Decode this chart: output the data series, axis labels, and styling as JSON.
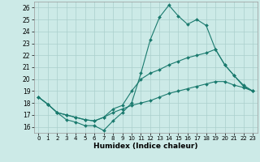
{
  "xlabel": "Humidex (Indice chaleur)",
  "background_color": "#cceae7",
  "grid_color": "#aacfcc",
  "line_color": "#1a7a6e",
  "xlim": [
    -0.5,
    23.5
  ],
  "ylim": [
    15.5,
    26.5
  ],
  "yticks": [
    16,
    17,
    18,
    19,
    20,
    21,
    22,
    23,
    24,
    25,
    26
  ],
  "xticks": [
    0,
    1,
    2,
    3,
    4,
    5,
    6,
    7,
    8,
    9,
    10,
    11,
    12,
    13,
    14,
    15,
    16,
    17,
    18,
    19,
    20,
    21,
    22,
    23
  ],
  "series": [
    {
      "x": [
        0,
        1,
        2,
        3,
        4,
        5,
        6,
        7,
        8,
        9,
        10,
        11,
        12,
        13,
        14,
        15,
        16,
        17,
        18,
        19,
        20,
        21,
        22,
        23
      ],
      "y": [
        18.5,
        17.9,
        17.2,
        16.6,
        16.4,
        16.1,
        16.1,
        15.7,
        16.5,
        17.2,
        18.0,
        20.5,
        23.3,
        25.2,
        26.2,
        25.3,
        24.6,
        25.0,
        24.5,
        22.5,
        21.2,
        20.3,
        19.4,
        19.0
      ]
    },
    {
      "x": [
        0,
        1,
        2,
        3,
        4,
        5,
        6,
        7,
        8,
        9,
        10,
        11,
        12,
        13,
        14,
        15,
        16,
        17,
        18,
        19,
        20,
        21,
        22,
        23
      ],
      "y": [
        18.5,
        17.9,
        17.2,
        17.0,
        16.8,
        16.6,
        16.5,
        16.8,
        17.5,
        17.8,
        19.0,
        20.0,
        20.5,
        20.8,
        21.2,
        21.5,
        21.8,
        22.0,
        22.2,
        22.5,
        21.2,
        20.3,
        19.5,
        19.0
      ]
    },
    {
      "x": [
        0,
        1,
        2,
        3,
        4,
        5,
        6,
        7,
        8,
        9,
        10,
        11,
        12,
        13,
        14,
        15,
        16,
        17,
        18,
        19,
        20,
        21,
        22,
        23
      ],
      "y": [
        18.5,
        17.9,
        17.2,
        17.0,
        16.8,
        16.6,
        16.5,
        16.8,
        17.2,
        17.5,
        17.8,
        18.0,
        18.2,
        18.5,
        18.8,
        19.0,
        19.2,
        19.4,
        19.6,
        19.8,
        19.8,
        19.5,
        19.3,
        19.0
      ]
    }
  ]
}
